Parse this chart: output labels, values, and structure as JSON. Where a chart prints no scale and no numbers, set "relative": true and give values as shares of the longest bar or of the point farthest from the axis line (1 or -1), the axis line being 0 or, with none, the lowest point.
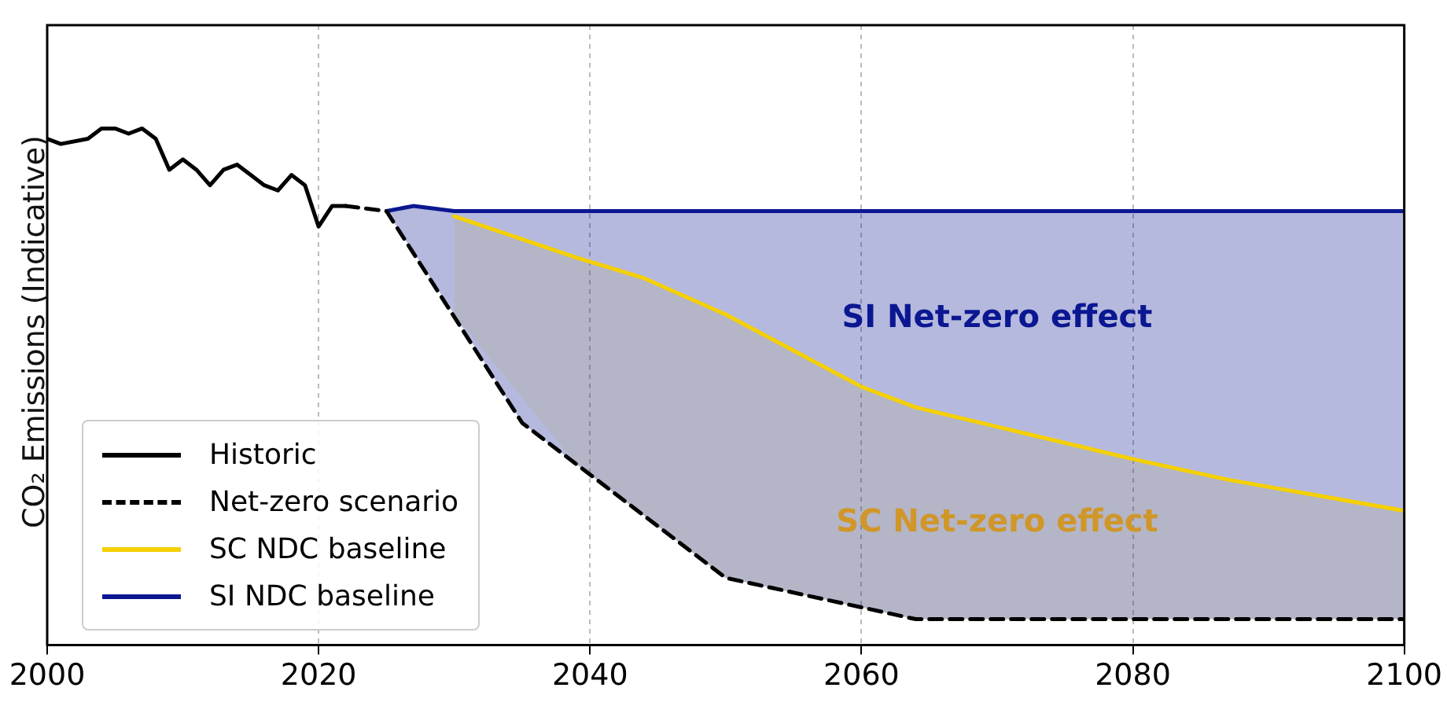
{
  "chart_data": {
    "type": "line",
    "relative": true,
    "ylabel": "CO₂ Emissions (Indicative)",
    "xlim": [
      2000,
      2100
    ],
    "xticks": [
      2000,
      2020,
      2040,
      2060,
      2080,
      2100
    ],
    "grid": "x",
    "legend": "bottom left",
    "marker": "none",
    "series": [
      {
        "name": "Historic",
        "color": "#000000",
        "line_style": "solid",
        "x": [
          2000,
          2001,
          2003,
          2004,
          2005,
          2006,
          2007,
          2008,
          2009,
          2010,
          2011,
          2012,
          2013,
          2014,
          2015,
          2016,
          2017,
          2018,
          2019,
          2020,
          2021,
          2022
        ],
        "values": [
          0.98,
          0.97,
          0.98,
          1.0,
          1.0,
          0.99,
          1.0,
          0.98,
          0.92,
          0.94,
          0.92,
          0.89,
          0.92,
          0.93,
          0.91,
          0.89,
          0.88,
          0.91,
          0.89,
          0.81,
          0.85,
          0.85
        ]
      },
      {
        "name": "Net-zero scenario",
        "color": "#000000",
        "line_style": "dashed",
        "x": [
          2022,
          2025,
          2035,
          2050,
          2064,
          2100
        ],
        "values": [
          0.85,
          0.84,
          0.43,
          0.13,
          0.05,
          0.05
        ]
      },
      {
        "name": "SC NDC baseline",
        "color": "#f5d000",
        "line_style": "solid",
        "x": [
          2030,
          2039,
          2044,
          2050,
          2060,
          2064,
          2072,
          2080,
          2087,
          2100
        ],
        "values": [
          0.83,
          0.75,
          0.71,
          0.64,
          0.5,
          0.46,
          0.41,
          0.36,
          0.32,
          0.26
        ],
        "lower": [
          0.64,
          0.35,
          0.25,
          0.13,
          0.07,
          0.05,
          0.05,
          0.05,
          0.05,
          0.05
        ],
        "upper": [
          0.83,
          0.75,
          0.71,
          0.64,
          0.5,
          0.46,
          0.41,
          0.36,
          0.32,
          0.26
        ]
      },
      {
        "name": "SI NDC baseline",
        "color": "#0b1791",
        "line_style": "solid",
        "x": [
          2025,
          2027,
          2030,
          2035,
          2050,
          2064,
          2100
        ],
        "values": [
          0.84,
          0.85,
          0.84,
          0.84,
          0.84,
          0.84,
          0.84
        ],
        "lower": [
          0.84,
          0.76,
          0.64,
          0.43,
          0.13,
          0.05,
          0.05
        ],
        "upper": [
          0.84,
          0.85,
          0.84,
          0.84,
          0.84,
          0.84,
          0.84
        ]
      }
    ],
    "annotations": [
      "SC Net-zero effect",
      "SI Net-zero effect"
    ]
  }
}
